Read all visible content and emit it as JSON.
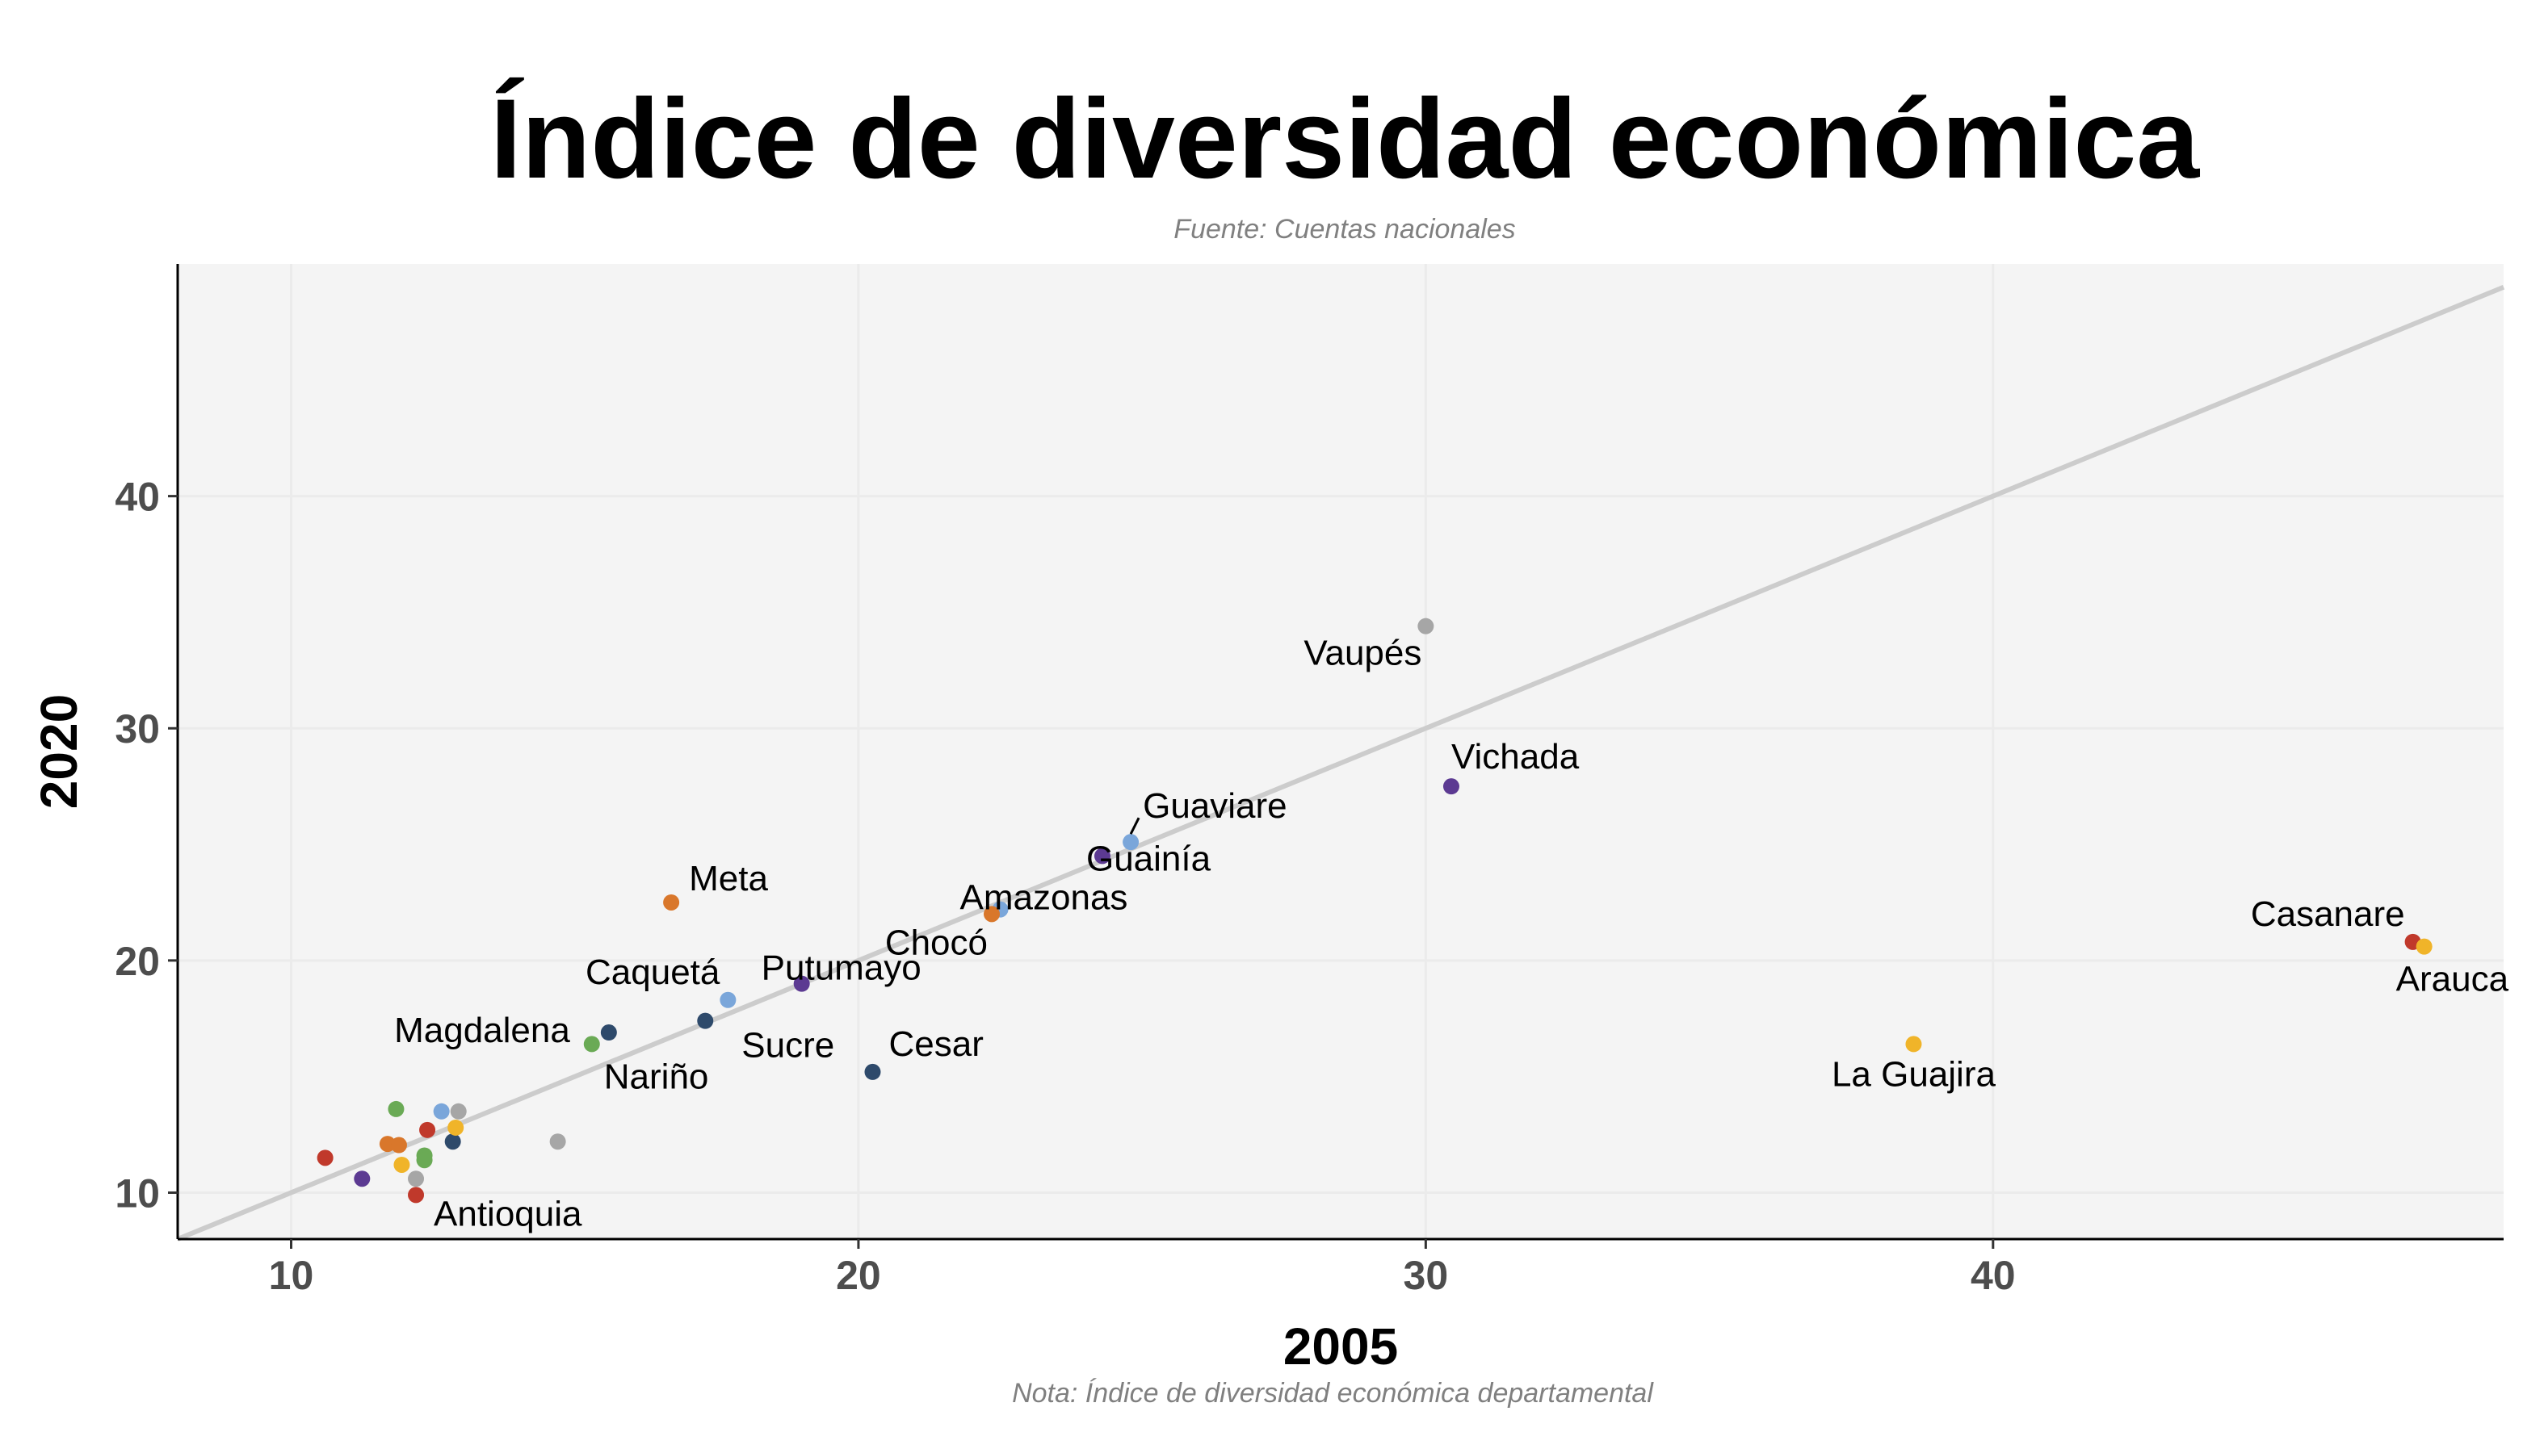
{
  "title": "Índice de diversidad económica",
  "subtitle": "Fuente: Cuentas nacionales",
  "caption": "Nota: Índice de diversidad económica departamental",
  "chart_data": {
    "type": "scatter",
    "title": "Índice de diversidad económica",
    "xlabel": "2005",
    "ylabel": "2020",
    "xlim": [
      8,
      49
    ],
    "ylim": [
      8,
      50
    ],
    "x_ticks": [
      10,
      20,
      30,
      40
    ],
    "y_ticks": [
      10,
      20,
      30,
      40
    ],
    "grid": true,
    "reference_line": "y = x",
    "colors": {
      "panel_background": "#f4f4f4",
      "grid": "#ebebeb",
      "reference_line": "#cccccc",
      "axis": "#000000"
    },
    "points": [
      {
        "label": "Vaupés",
        "x": 30.0,
        "y": 34.4,
        "color": "#a6a6a6"
      },
      {
        "label": "Vichada",
        "x": 30.45,
        "y": 27.5,
        "color": "#5c3a92"
      },
      {
        "label": "Guaviare",
        "x": 24.8,
        "y": 25.1,
        "color": "#7aa6da"
      },
      {
        "label": "Guainía",
        "x": 24.3,
        "y": 24.5,
        "color": "#5c3a92"
      },
      {
        "label": "Amazonas",
        "x": 22.5,
        "y": 22.2,
        "color": "#7aa6da"
      },
      {
        "label": "Chocó",
        "x": 22.35,
        "y": 22.0,
        "color": "#d9772b"
      },
      {
        "label": "Meta",
        "x": 16.7,
        "y": 22.5,
        "color": "#d9772b"
      },
      {
        "label": "Putumayo",
        "x": 19.0,
        "y": 19.0,
        "color": "#5c3a92"
      },
      {
        "label": "Caquetá",
        "x": 17.7,
        "y": 18.3,
        "color": "#7aa6da"
      },
      {
        "label": "Sucre",
        "x": 17.3,
        "y": 17.4,
        "color": "#2e4a6b"
      },
      {
        "label": "Magdalena",
        "x": 15.6,
        "y": 16.9,
        "color": "#2e4a6b"
      },
      {
        "label": "Nariño",
        "x": 15.3,
        "y": 16.4,
        "color": "#6aaa55"
      },
      {
        "label": "Cesar",
        "x": 20.25,
        "y": 15.2,
        "color": "#2e4a6b"
      },
      {
        "label": "Casanare",
        "x": 47.4,
        "y": 20.8,
        "color": "#c0392b"
      },
      {
        "label": "Arauca",
        "x": 47.6,
        "y": 20.6,
        "color": "#f0b429"
      },
      {
        "label": "La Guajira",
        "x": 38.6,
        "y": 16.4,
        "color": "#f0b429"
      },
      {
        "label": "Antioquia",
        "x": 12.2,
        "y": 9.9,
        "color": "#c0392b"
      },
      {
        "label": "",
        "x": 10.6,
        "y": 11.5,
        "color": "#c0392b"
      },
      {
        "label": "",
        "x": 11.25,
        "y": 10.6,
        "color": "#5c3a92"
      },
      {
        "label": "",
        "x": 11.7,
        "y": 12.1,
        "color": "#d9772b"
      },
      {
        "label": "",
        "x": 11.9,
        "y": 12.05,
        "color": "#d9772b"
      },
      {
        "label": "",
        "x": 11.95,
        "y": 11.2,
        "color": "#f0b429"
      },
      {
        "label": "",
        "x": 11.85,
        "y": 13.6,
        "color": "#6aaa55"
      },
      {
        "label": "",
        "x": 12.2,
        "y": 10.6,
        "color": "#a6a6a6"
      },
      {
        "label": "",
        "x": 12.35,
        "y": 11.6,
        "color": "#6aaa55"
      },
      {
        "label": "",
        "x": 12.35,
        "y": 11.4,
        "color": "#6aaa55"
      },
      {
        "label": "",
        "x": 12.4,
        "y": 12.7,
        "color": "#c0392b"
      },
      {
        "label": "",
        "x": 12.65,
        "y": 13.5,
        "color": "#7aa6da"
      },
      {
        "label": "",
        "x": 12.85,
        "y": 12.2,
        "color": "#2e4a6b"
      },
      {
        "label": "",
        "x": 12.9,
        "y": 12.8,
        "color": "#f0b429"
      },
      {
        "label": "",
        "x": 12.95,
        "y": 13.5,
        "color": "#a6a6a6"
      },
      {
        "label": "",
        "x": 14.7,
        "y": 12.2,
        "color": "#a6a6a6"
      }
    ]
  }
}
